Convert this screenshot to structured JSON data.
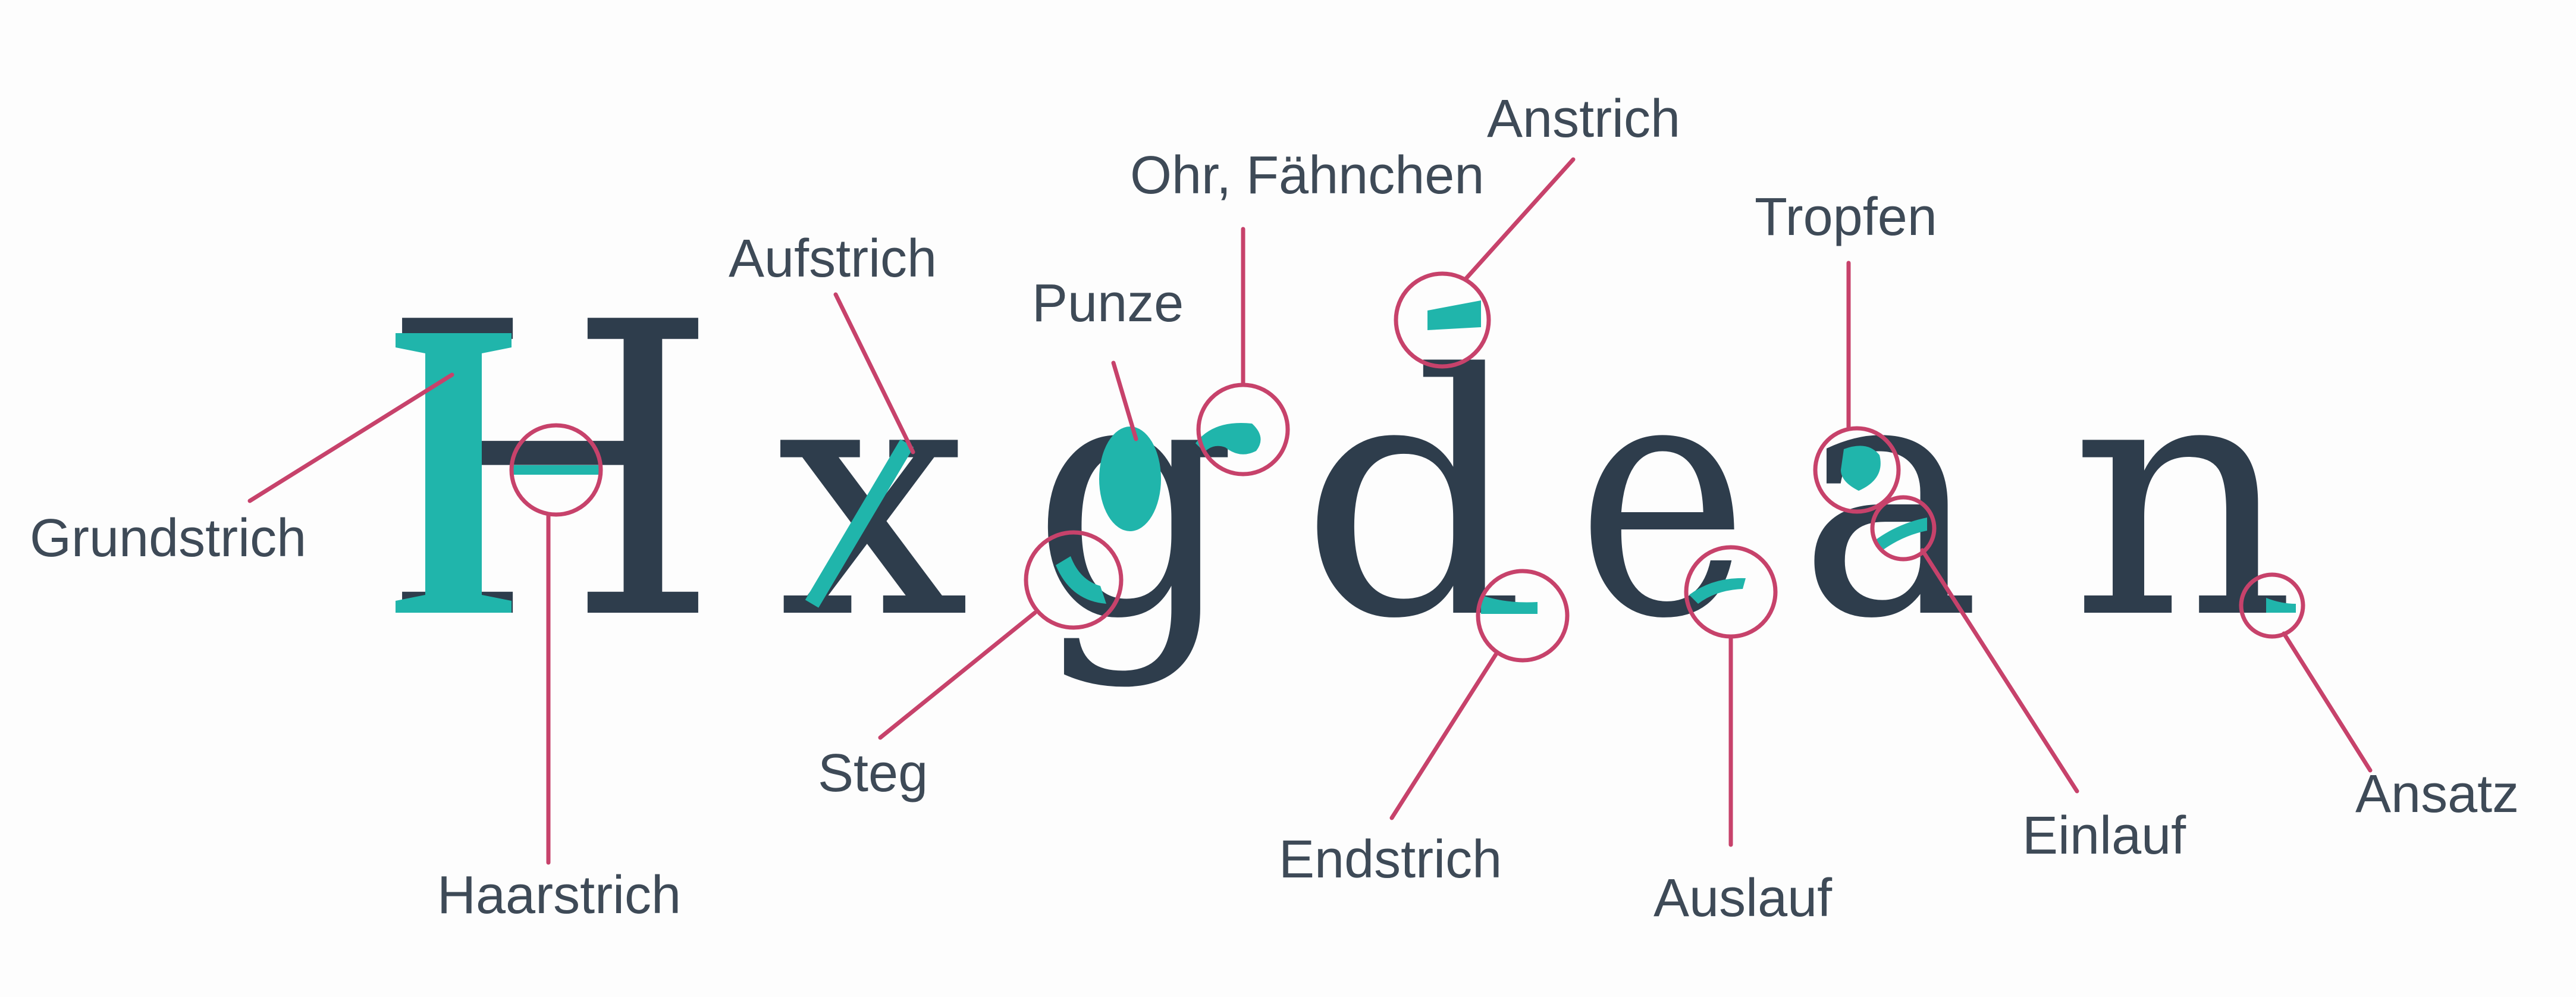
{
  "word": {
    "letters": [
      "H",
      "x",
      "g",
      "d",
      "e",
      "a",
      "n"
    ]
  },
  "labels": {
    "grundstrich": "Grundstrich",
    "haarstrich": "Haarstrich",
    "aufstrich": "Aufstrich",
    "steg": "Steg",
    "punze": "Punze",
    "ohr": "Ohr, Fähnchen",
    "anstrich": "Anstrich",
    "endstrich": "Endstrich",
    "auslauf": "Auslauf",
    "tropfen": "Tropfen",
    "einlauf": "Einlauf",
    "ansatz": "Ansatz"
  },
  "colors": {
    "letters": "#2e3d4c",
    "highlight": "#20b5ab",
    "marker": "#c7426b",
    "label": "#3e4a57",
    "background": "#fdfdfd"
  }
}
